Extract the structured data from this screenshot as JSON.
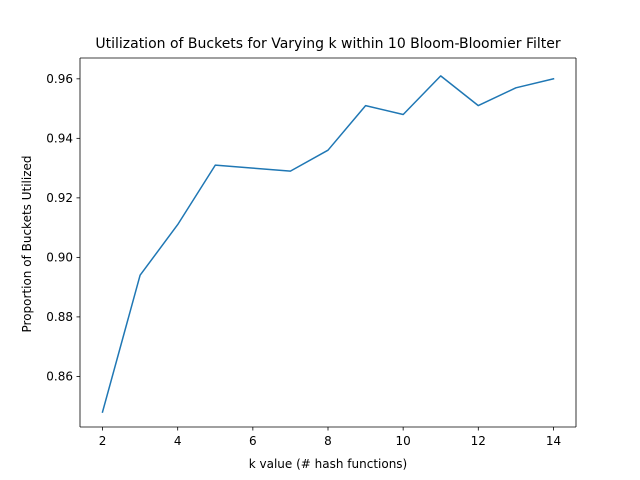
{
  "chart_data": {
    "type": "line",
    "title": "Utilization of Buckets for Varying k within 10 Bloom-Bloomier Filter",
    "xlabel": "k value (# hash functions)",
    "ylabel": "Proportion of Buckets Utilized",
    "xlim": [
      1.4,
      14.6
    ],
    "ylim": [
      0.843,
      0.967
    ],
    "xticks": [
      2,
      4,
      6,
      8,
      10,
      12,
      14
    ],
    "yticks": [
      0.86,
      0.88,
      0.9,
      0.92,
      0.94,
      0.96
    ],
    "xtick_labels": [
      "2",
      "4",
      "6",
      "8",
      "10",
      "12",
      "14"
    ],
    "ytick_labels": [
      "0.86",
      "0.88",
      "0.90",
      "0.92",
      "0.94",
      "0.96"
    ],
    "grid": false,
    "legend": "none",
    "series": [
      {
        "color": "#1f77b4",
        "x": [
          2,
          3,
          4,
          5,
          6,
          7,
          8,
          9,
          10,
          11,
          12,
          13,
          14
        ],
        "y": [
          0.848,
          0.894,
          0.911,
          0.931,
          0.93,
          0.929,
          0.936,
          0.951,
          0.948,
          0.961,
          0.951,
          0.957,
          0.96
        ]
      }
    ]
  }
}
